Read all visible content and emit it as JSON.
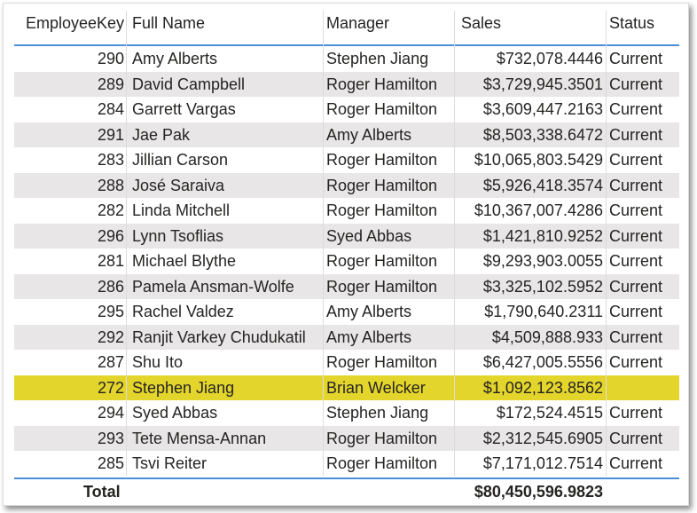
{
  "table": {
    "columns": {
      "key": "EmployeeKey",
      "name": "Full Name",
      "manager": "Manager",
      "sales": "Sales",
      "status": "Status"
    },
    "rows": [
      {
        "key": "290",
        "name": "Amy Alberts",
        "manager": "Stephen Jiang",
        "sales": "$732,078.4446",
        "status": "Current"
      },
      {
        "key": "289",
        "name": "David Campbell",
        "manager": "Roger Hamilton",
        "sales": "$3,729,945.3501",
        "status": "Current"
      },
      {
        "key": "284",
        "name": "Garrett Vargas",
        "manager": "Roger Hamilton",
        "sales": "$3,609,447.2163",
        "status": "Current"
      },
      {
        "key": "291",
        "name": "Jae Pak",
        "manager": "Amy Alberts",
        "sales": "$8,503,338.6472",
        "status": "Current"
      },
      {
        "key": "283",
        "name": "Jillian Carson",
        "manager": "Roger Hamilton",
        "sales": "$10,065,803.5429",
        "status": "Current"
      },
      {
        "key": "288",
        "name": "José Saraiva",
        "manager": "Roger Hamilton",
        "sales": "$5,926,418.3574",
        "status": "Current"
      },
      {
        "key": "282",
        "name": "Linda Mitchell",
        "manager": "Roger Hamilton",
        "sales": "$10,367,007.4286",
        "status": "Current"
      },
      {
        "key": "296",
        "name": "Lynn Tsoflias",
        "manager": "Syed Abbas",
        "sales": "$1,421,810.9252",
        "status": "Current"
      },
      {
        "key": "281",
        "name": "Michael Blythe",
        "manager": "Roger Hamilton",
        "sales": "$9,293,903.0055",
        "status": "Current"
      },
      {
        "key": "286",
        "name": "Pamela Ansman-Wolfe",
        "manager": "Roger Hamilton",
        "sales": "$3,325,102.5952",
        "status": "Current"
      },
      {
        "key": "295",
        "name": "Rachel Valdez",
        "manager": "Amy Alberts",
        "sales": "$1,790,640.2311",
        "status": "Current"
      },
      {
        "key": "292",
        "name": "Ranjit Varkey Chudukatil",
        "manager": "Amy Alberts",
        "sales": "$4,509,888.933",
        "status": "Current"
      },
      {
        "key": "287",
        "name": "Shu Ito",
        "manager": "Roger Hamilton",
        "sales": "$6,427,005.5556",
        "status": "Current"
      },
      {
        "key": "272",
        "name": "Stephen Jiang",
        "manager": "Brian Welcker",
        "sales": "$1,092,123.8562",
        "status": "",
        "highlighted": true
      },
      {
        "key": "294",
        "name": "Syed Abbas",
        "manager": "Stephen Jiang",
        "sales": "$172,524.4515",
        "status": "Current"
      },
      {
        "key": "293",
        "name": "Tete Mensa-Annan",
        "manager": "Roger Hamilton",
        "sales": "$2,312,545.6905",
        "status": "Current"
      },
      {
        "key": "285",
        "name": "Tsvi Reiter",
        "manager": "Roger Hamilton",
        "sales": "$7,171,012.7514",
        "status": "Current"
      }
    ],
    "total": {
      "label": "Total",
      "sales": "$80,450,596.9823"
    }
  },
  "colors": {
    "alternate_row": "#e8e6e6",
    "highlight_row": "#e4d52c",
    "header_rule": "#4a90d9"
  }
}
